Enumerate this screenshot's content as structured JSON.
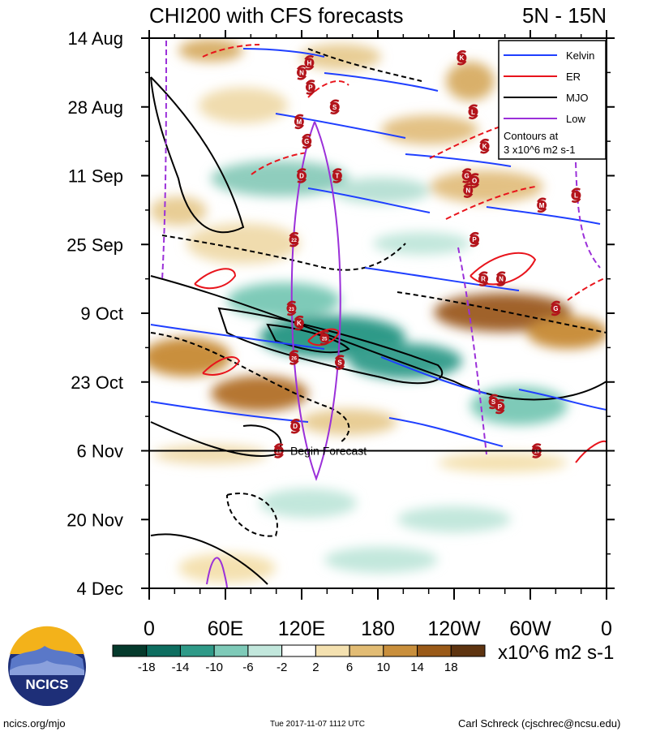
{
  "title": "CHI200 with CFS forecasts",
  "region": "5N - 15N",
  "forecast_label": "Begin Forecast",
  "legend": {
    "entries": [
      {
        "name": "Kelvin",
        "color": "#1f3fff"
      },
      {
        "name": "ER",
        "color": "#e8141c"
      },
      {
        "name": "MJO",
        "color": "#000000"
      },
      {
        "name": "Low",
        "color": "#9b30d9"
      }
    ],
    "note_line1": "Contours at",
    "note_line2": "3 x10^6 m2 s-1"
  },
  "colorbar": {
    "ticks": [
      "-18",
      "-14",
      "-10",
      "-6",
      "-2",
      "2",
      "6",
      "10",
      "14",
      "18"
    ],
    "colors": [
      "#053a2c",
      "#0e6e60",
      "#2f9a88",
      "#7ecab8",
      "#c2e7dc",
      "#ffffff",
      "#f4e1b0",
      "#e2bc74",
      "#c98f3c",
      "#9a5a18",
      "#5e3410"
    ],
    "unit": "x10^6 m2 s-1"
  },
  "footer": {
    "logo_text": "NCICS",
    "left": "ncics.org/mjo",
    "center": "Tue 2017-11-07 1112 UTC",
    "right": "Carl Schreck (cjschrec@ncsu.edu)"
  },
  "chart_data": {
    "type": "heatmap",
    "title": "CHI200 with CFS forecasts",
    "subtitle": "5N - 15N",
    "x_axis": {
      "label": "",
      "ticks": [
        "0",
        "60E",
        "120E",
        "180",
        "120W",
        "60W",
        "0"
      ],
      "range_deg_east": [
        0,
        360
      ]
    },
    "y_axis": {
      "label": "",
      "ticks": [
        "14 Aug",
        "28 Aug",
        "11 Sep",
        "25 Sep",
        "9 Oct",
        "23 Oct",
        "6 Nov",
        "20 Nov",
        "4 Dec"
      ],
      "range": [
        "2017-08-14",
        "2017-12-04"
      ]
    },
    "forecast_start": "2017-11-06",
    "value_unit": "x10^6 m2 s-1",
    "contour_interval": 3,
    "color_levels": [
      -18,
      -14,
      -10,
      -6,
      -2,
      2,
      6,
      10,
      14,
      18
    ],
    "series": [
      {
        "name": "Kelvin",
        "color": "#1f3fff"
      },
      {
        "name": "ER",
        "color": "#e8141c"
      },
      {
        "name": "MJO",
        "color": "#000000"
      },
      {
        "name": "Low",
        "color": "#9b30d9"
      }
    ],
    "storm_markers": [
      {
        "label": "K",
        "lon": 246,
        "date": "2017-08-18"
      },
      {
        "label": "H",
        "lon": 126,
        "date": "2017-08-19"
      },
      {
        "label": "N",
        "lon": 120,
        "date": "2017-08-21"
      },
      {
        "label": "P",
        "lon": 127,
        "date": "2017-08-24"
      },
      {
        "label": "S",
        "lon": 146,
        "date": "2017-08-28"
      },
      {
        "label": "L",
        "lon": 255,
        "date": "2017-08-29"
      },
      {
        "label": "M",
        "lon": 118,
        "date": "2017-08-31"
      },
      {
        "label": "G",
        "lon": 124,
        "date": "2017-09-04"
      },
      {
        "label": "K",
        "lon": 264,
        "date": "2017-09-05"
      },
      {
        "label": "T",
        "lon": 148,
        "date": "2017-09-11"
      },
      {
        "label": "D",
        "lon": 120,
        "date": "2017-09-11"
      },
      {
        "label": "G",
        "lon": 250,
        "date": "2017-09-11"
      },
      {
        "label": "O",
        "lon": 256,
        "date": "2017-09-12"
      },
      {
        "label": "N",
        "lon": 251,
        "date": "2017-09-14"
      },
      {
        "label": "L",
        "lon": 336,
        "date": "2017-09-15"
      },
      {
        "label": "M",
        "lon": 309,
        "date": "2017-09-17"
      },
      {
        "label": "22",
        "lon": 114,
        "date": "2017-09-24"
      },
      {
        "label": "P",
        "lon": 256,
        "date": "2017-09-24"
      },
      {
        "label": "R",
        "lon": 263,
        "date": "2017-10-02"
      },
      {
        "label": "N",
        "lon": 277,
        "date": "2017-10-02"
      },
      {
        "label": "23",
        "lon": 112,
        "date": "2017-10-08"
      },
      {
        "label": "G",
        "lon": 320,
        "date": "2017-10-08"
      },
      {
        "label": "K",
        "lon": 118,
        "date": "2017-10-11"
      },
      {
        "label": "25",
        "lon": 138,
        "date": "2017-10-14"
      },
      {
        "label": "26",
        "lon": 114,
        "date": "2017-10-18"
      },
      {
        "label": "S",
        "lon": 150,
        "date": "2017-10-19"
      },
      {
        "label": "S",
        "lon": 271,
        "date": "2017-10-27"
      },
      {
        "label": "P",
        "lon": 276,
        "date": "2017-10-28"
      },
      {
        "label": "D",
        "lon": 115,
        "date": "2017-11-01"
      },
      {
        "label": "29",
        "lon": 102,
        "date": "2017-11-06"
      },
      {
        "label": "19",
        "lon": 305,
        "date": "2017-11-06"
      }
    ]
  }
}
